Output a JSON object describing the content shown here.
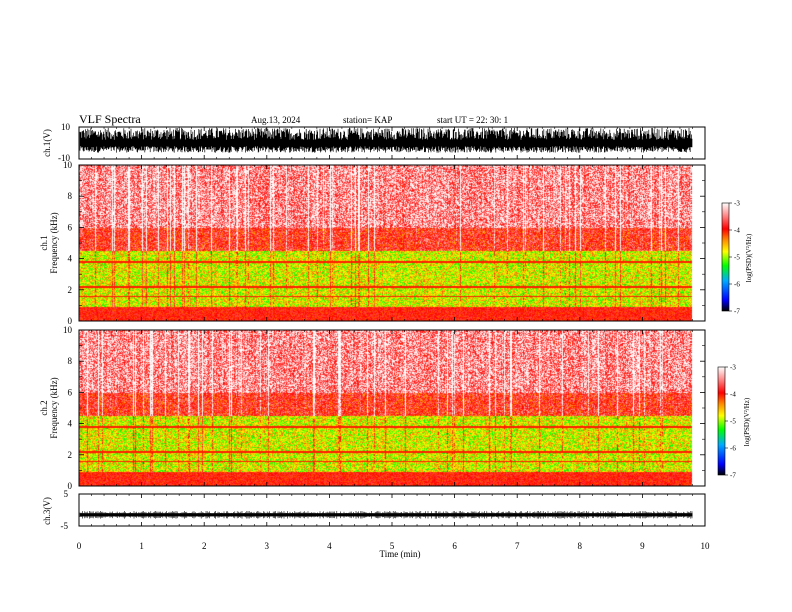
{
  "header": {
    "title": "VLF Spectra",
    "date": "Aug.13, 2024",
    "station": "station= KAP",
    "start_time": "start  UT =   22: 30: 1"
  },
  "chart_data": [
    {
      "type": "line",
      "panel": "ch1-waveform",
      "ylabel": "ch.1(V)",
      "ylim": [
        -10,
        10
      ],
      "ytick_labels": [
        "10",
        "-10"
      ],
      "xlim": [
        0,
        10
      ],
      "data_end_min": 9.8,
      "description_values": "noisy signal mostly between -6 and +9 V"
    },
    {
      "type": "heatmap",
      "panel": "ch1-spectrogram",
      "ylabel": "ch.1\nFrequency  (kHz)",
      "ylabel_line1": "ch.1",
      "ylabel_line2": "Frequency  (kHz)",
      "ylim": [
        0,
        10
      ],
      "ytick_labels": [
        "0",
        "2",
        "4",
        "6",
        "8",
        "10"
      ],
      "xlim": [
        0,
        10
      ],
      "colorbar": {
        "label": "log(PSD)(V²/Hz)",
        "range": [
          -7,
          -3
        ],
        "tick_labels": [
          "-3",
          "-4",
          "-5",
          "-6",
          "-7"
        ],
        "colors": [
          "#000000",
          "#0000ff",
          "#00aaff",
          "#00ff00",
          "#ffff00",
          "#ff8800",
          "#ff0000",
          "#ffffff"
        ]
      }
    },
    {
      "type": "heatmap",
      "panel": "ch2-spectrogram",
      "ylabel": "ch.2\nFrequency  (kHz)",
      "ylabel_line1": "ch.2",
      "ylabel_line2": "Frequency  (kHz)",
      "ylim": [
        0,
        10
      ],
      "ytick_labels": [
        "0",
        "2",
        "4",
        "6",
        "8",
        "10"
      ],
      "xlim": [
        0,
        10
      ],
      "colorbar": {
        "label": "log(PSD)(V²/Hz)",
        "range": [
          -7,
          -3
        ],
        "tick_labels": [
          "-3",
          "-4",
          "-5",
          "-6",
          "-7"
        ],
        "colors": [
          "#000000",
          "#0000ff",
          "#00aaff",
          "#00ff00",
          "#ffff00",
          "#ff8800",
          "#ff0000",
          "#ffffff"
        ]
      }
    },
    {
      "type": "line",
      "panel": "ch3-waveform",
      "ylabel": "ch.3(V)",
      "ylim": [
        -5,
        5
      ],
      "ytick_labels": [
        "5",
        "-5"
      ],
      "xlim": [
        0,
        10
      ],
      "xlabel": "Time  (min)",
      "xtick_labels": [
        "0",
        "1",
        "2",
        "3",
        "4",
        "5",
        "6",
        "7",
        "8",
        "9",
        "10"
      ],
      "data_end_min": 9.8,
      "band": [
        -2,
        -1
      ]
    }
  ]
}
